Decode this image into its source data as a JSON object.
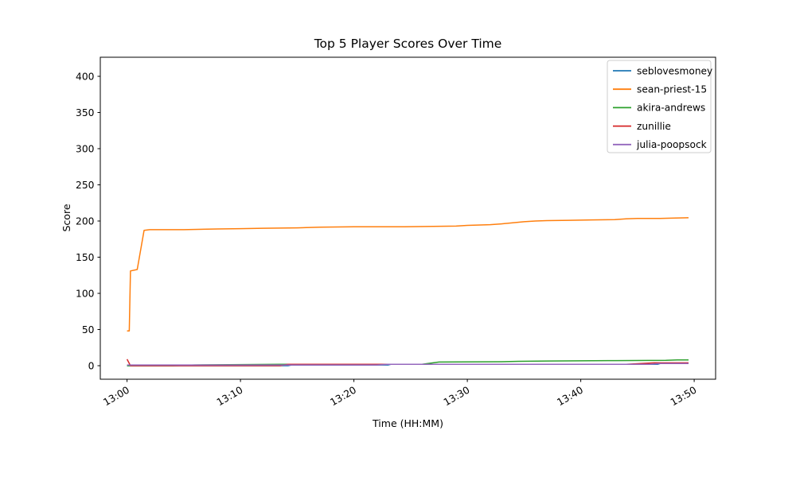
{
  "figure": {
    "title": "Top 5 Player Scores Over Time",
    "xlabel": "Time (HH:MM)",
    "ylabel": "Score"
  },
  "chart_data": {
    "type": "line",
    "title": "Top 5 Player Scores Over Time",
    "xlabel": "Time (HH:MM)",
    "ylabel": "Score",
    "x_unit": "minutes after 13:00",
    "x_ticks": [
      {
        "minute": 0,
        "label": "13:00"
      },
      {
        "minute": 10,
        "label": "13:10"
      },
      {
        "minute": 20,
        "label": "13:20"
      },
      {
        "minute": 30,
        "label": "13:30"
      },
      {
        "minute": 40,
        "label": "13:40"
      },
      {
        "minute": 50,
        "label": "13:50"
      }
    ],
    "y_ticks": [
      0,
      50,
      100,
      150,
      200,
      250,
      300,
      350,
      400
    ],
    "ylim": [
      -17.5,
      427
    ],
    "xlim_minutes": [
      -2.4,
      51.9
    ],
    "grid": false,
    "legend_position": "upper right",
    "series": [
      {
        "name": "seblovesmoney",
        "color": "#1f77b4",
        "points": [
          [
            0,
            0
          ],
          [
            14.2,
            0
          ],
          [
            14.5,
            1
          ],
          [
            23,
            1
          ],
          [
            23.3,
            2
          ],
          [
            46.8,
            2
          ],
          [
            47,
            3
          ],
          [
            49.5,
            3
          ]
        ]
      },
      {
        "name": "sean-priest-15",
        "color": "#ff7f0e",
        "points": [
          [
            0,
            48
          ],
          [
            0.2,
            48
          ],
          [
            0.3,
            131
          ],
          [
            0.9,
            133
          ],
          [
            1.5,
            187
          ],
          [
            2,
            188
          ],
          [
            5,
            188
          ],
          [
            8,
            189
          ],
          [
            10,
            189.5
          ],
          [
            12,
            190
          ],
          [
            15,
            190.5
          ],
          [
            17,
            191.5
          ],
          [
            20,
            192
          ],
          [
            24,
            192
          ],
          [
            27,
            192.5
          ],
          [
            29,
            193
          ],
          [
            30,
            194
          ],
          [
            32,
            195
          ],
          [
            33,
            196
          ],
          [
            34,
            197.5
          ],
          [
            35,
            199
          ],
          [
            36,
            200
          ],
          [
            37,
            200.5
          ],
          [
            39,
            201
          ],
          [
            41,
            201.5
          ],
          [
            43,
            202
          ],
          [
            44,
            203
          ],
          [
            45,
            203.5
          ],
          [
            47,
            203.5
          ],
          [
            48,
            204
          ],
          [
            49.5,
            204.5
          ]
        ]
      },
      {
        "name": "akira-andrews",
        "color": "#2ca02c",
        "points": [
          [
            0,
            0
          ],
          [
            4,
            0
          ],
          [
            6,
            1
          ],
          [
            13.5,
            2
          ],
          [
            26,
            2
          ],
          [
            27.5,
            5
          ],
          [
            33,
            5.5
          ],
          [
            34.5,
            6
          ],
          [
            37,
            6.5
          ],
          [
            43,
            7
          ],
          [
            47.5,
            7.5
          ],
          [
            48.5,
            8
          ],
          [
            49.5,
            8
          ]
        ]
      },
      {
        "name": "zunillie",
        "color": "#d62728",
        "points": [
          [
            0,
            9
          ],
          [
            0.3,
            0
          ],
          [
            13.5,
            0
          ],
          [
            14.2,
            2
          ],
          [
            44,
            2
          ],
          [
            46.5,
            4
          ],
          [
            49.5,
            4
          ]
        ]
      },
      {
        "name": "julia-poopsock",
        "color": "#9467bd",
        "points": [
          [
            0,
            1
          ],
          [
            22,
            1
          ],
          [
            23,
            2
          ],
          [
            46,
            2
          ],
          [
            47,
            3
          ],
          [
            49.5,
            3
          ]
        ]
      }
    ]
  }
}
